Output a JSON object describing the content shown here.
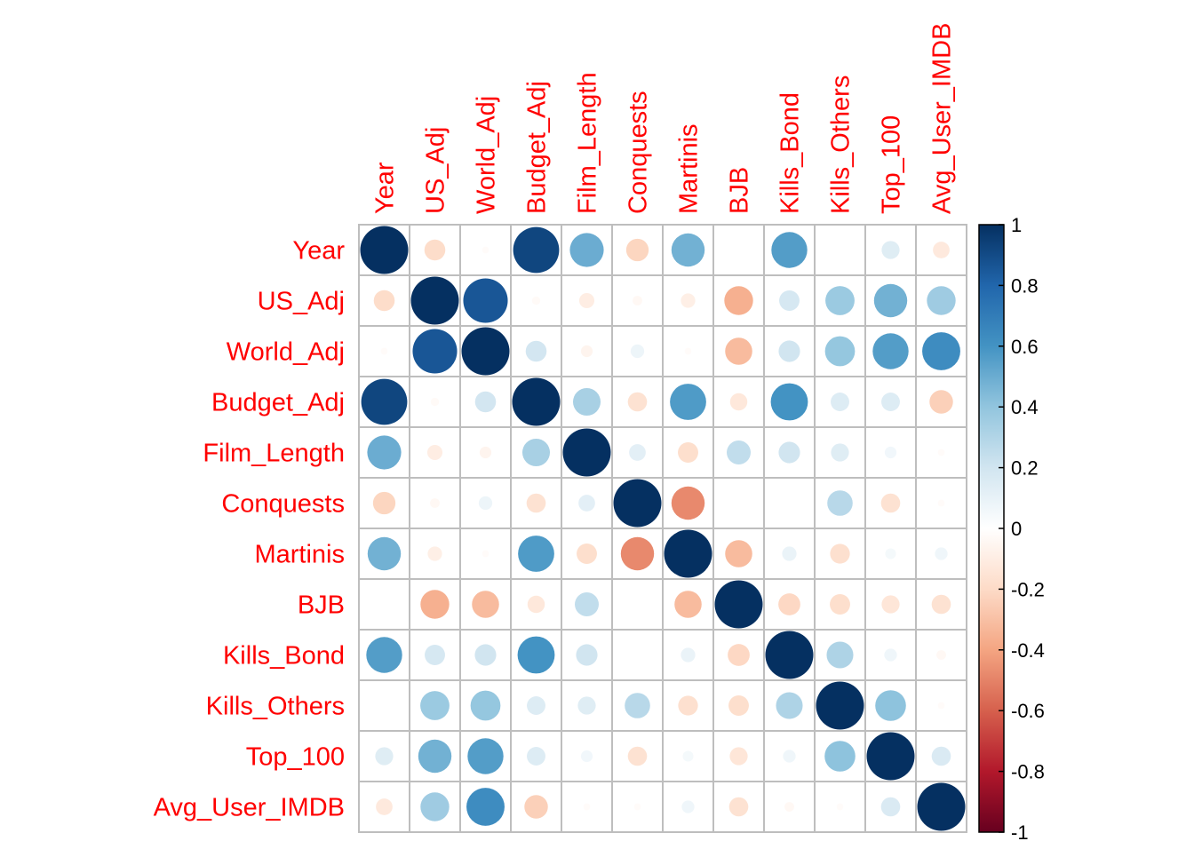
{
  "chart_data": {
    "type": "heatmap",
    "variables": [
      "Year",
      "US_Adj",
      "World_Adj",
      "Budget_Adj",
      "Film_Length",
      "Conquests",
      "Martinis",
      "BJB",
      "Kills_Bond",
      "Kills_Others",
      "Top_100",
      "Avg_User_IMDB"
    ],
    "matrix": [
      [
        1.0,
        -0.19,
        -0.02,
        0.92,
        0.5,
        -0.22,
        0.48,
        0.0,
        0.56,
        0.0,
        0.14,
        -0.12
      ],
      [
        -0.19,
        1.0,
        0.86,
        -0.03,
        -0.1,
        -0.04,
        -0.09,
        -0.36,
        0.18,
        0.37,
        0.48,
        0.36
      ],
      [
        -0.02,
        0.86,
        1.0,
        0.19,
        -0.06,
        0.08,
        -0.02,
        -0.32,
        0.2,
        0.39,
        0.56,
        0.63
      ],
      [
        0.92,
        -0.03,
        0.19,
        1.0,
        0.33,
        -0.16,
        0.57,
        -0.13,
        0.6,
        0.15,
        0.15,
        -0.24
      ],
      [
        0.5,
        -0.1,
        -0.06,
        0.33,
        1.0,
        0.12,
        -0.18,
        0.25,
        0.2,
        0.14,
        0.06,
        -0.02
      ],
      [
        -0.22,
        -0.04,
        0.08,
        -0.16,
        0.12,
        1.0,
        -0.48,
        0.0,
        0.0,
        0.28,
        -0.16,
        -0.02
      ],
      [
        0.48,
        -0.09,
        -0.02,
        0.57,
        -0.18,
        -0.48,
        1.0,
        -0.32,
        0.09,
        -0.17,
        0.05,
        0.07
      ],
      [
        0.0,
        -0.36,
        -0.32,
        -0.13,
        0.25,
        0.0,
        -0.32,
        1.0,
        -0.21,
        -0.18,
        -0.14,
        -0.16
      ],
      [
        0.56,
        0.18,
        0.2,
        0.6,
        0.2,
        0.0,
        0.09,
        -0.21,
        1.0,
        0.31,
        0.07,
        -0.04
      ],
      [
        0.0,
        0.37,
        0.39,
        0.15,
        0.14,
        0.28,
        -0.17,
        -0.18,
        0.31,
        1.0,
        0.41,
        -0.02
      ],
      [
        0.14,
        0.48,
        0.56,
        0.15,
        0.06,
        -0.16,
        0.05,
        -0.14,
        0.07,
        0.41,
        1.0,
        0.16
      ],
      [
        -0.12,
        0.36,
        0.63,
        -0.24,
        -0.02,
        -0.02,
        0.07,
        -0.16,
        -0.04,
        -0.02,
        0.16,
        1.0
      ]
    ],
    "colorbar": {
      "ticks": [
        "1",
        "0.8",
        "0.6",
        "0.4",
        "0.2",
        "0",
        "-0.2",
        "-0.4",
        "-0.6",
        "-0.8",
        "-1"
      ],
      "range": [
        -1,
        1
      ],
      "palette": [
        "#67001F",
        "#B2182B",
        "#D6604D",
        "#F4A582",
        "#FDDBC7",
        "#FFFFFF",
        "#D1E5F0",
        "#92C5DE",
        "#4393C3",
        "#2166AC",
        "#053061"
      ]
    },
    "label_color": "#FF0000",
    "grid_color": "#BEBEBE"
  }
}
